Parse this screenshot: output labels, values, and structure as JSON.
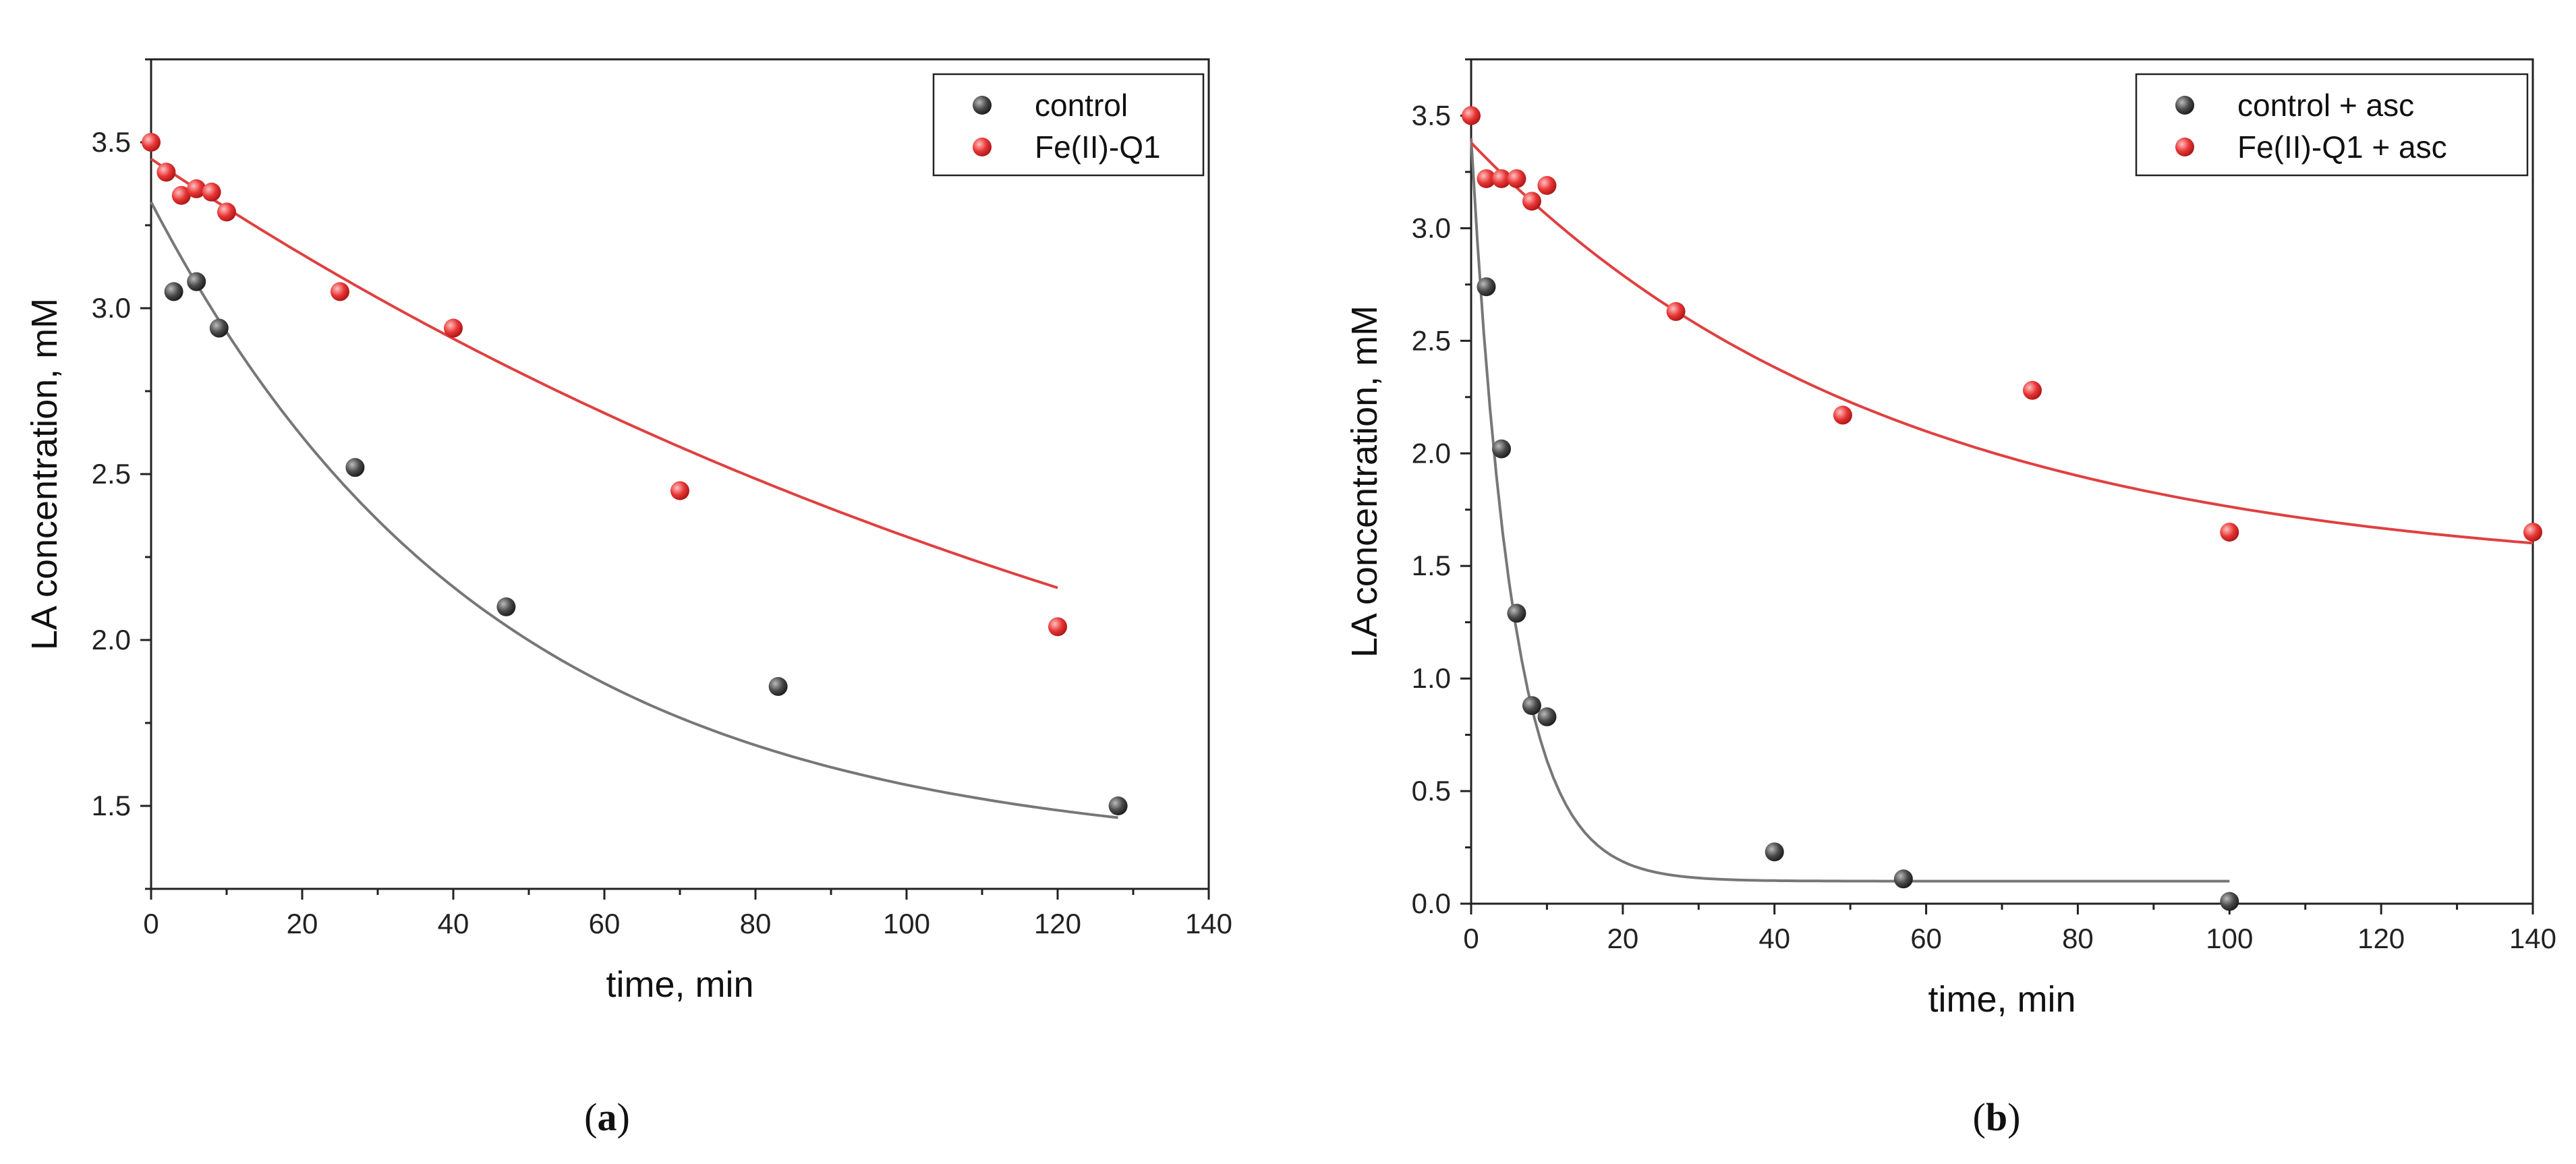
{
  "colors": {
    "control": "#555555",
    "control_fit": "#777777",
    "fe": "#e83535",
    "fe_fit": "#e04040",
    "axis": "#222222"
  },
  "chart_data": [
    {
      "type": "scatter",
      "panel": "a",
      "caption_open": "(",
      "caption_letter": "a",
      "caption_close": ")",
      "xlabel": "time, min",
      "ylabel": "LA concentration, mM",
      "xlim": [
        0,
        140
      ],
      "ylim": [
        1.25,
        3.75
      ],
      "xticks": [
        0,
        20,
        40,
        60,
        80,
        100,
        120,
        140
      ],
      "xtick_labels": [
        "0",
        "20",
        "40",
        "60",
        "80",
        "100",
        "120",
        "140"
      ],
      "yticks": [
        1.5,
        2.0,
        2.5,
        3.0,
        3.5
      ],
      "ytick_labels": [
        "1.5",
        "2.0",
        "2.5",
        "3.0",
        "3.5"
      ],
      "legend_position": "top-right",
      "series": [
        {
          "name": "control",
          "color_key": "control",
          "x": [
            3,
            6,
            9,
            27,
            47,
            83,
            128
          ],
          "y": [
            3.05,
            3.08,
            2.94,
            2.52,
            2.1,
            1.86,
            1.5
          ],
          "fit": {
            "model": "exp_decay",
            "y0": 1.35,
            "A": 1.97,
            "tau": 45,
            "x_start": 0,
            "x_end": 128
          }
        },
        {
          "name": "Fe(II)-Q1",
          "color_key": "fe",
          "x": [
            0,
            2,
            4,
            6,
            8,
            10,
            25,
            40,
            70,
            120
          ],
          "y": [
            3.5,
            3.41,
            3.34,
            3.36,
            3.35,
            3.29,
            3.05,
            2.94,
            2.45,
            2.04
          ],
          "fit": {
            "model": "exp_decay",
            "y0": 1.0,
            "A": 2.45,
            "tau": 160,
            "x_start": 0,
            "x_end": 120
          }
        }
      ]
    },
    {
      "type": "scatter",
      "panel": "b",
      "caption_open": "(",
      "caption_letter": "b",
      "caption_close": ")",
      "xlabel": "time, min",
      "ylabel": "LA concentration, mM",
      "xlim": [
        0,
        140
      ],
      "ylim": [
        0,
        3.75
      ],
      "xticks": [
        0,
        20,
        40,
        60,
        80,
        100,
        120,
        140
      ],
      "xtick_labels": [
        "0",
        "20",
        "40",
        "60",
        "80",
        "100",
        "120",
        "140"
      ],
      "yticks": [
        0.0,
        0.5,
        1.0,
        1.5,
        2.0,
        2.5,
        3.0,
        3.5
      ],
      "ytick_labels": [
        "0.0",
        "0.5",
        "1.0",
        "1.5",
        "2.0",
        "2.5",
        "3.0",
        "3.5"
      ],
      "legend_position": "top-right",
      "series": [
        {
          "name": "control + asc",
          "color_key": "control",
          "x": [
            2,
            4,
            6,
            8,
            10,
            40,
            57,
            100
          ],
          "y": [
            2.74,
            2.02,
            1.29,
            0.88,
            0.83,
            0.23,
            0.11,
            0.01
          ],
          "fit": {
            "model": "exp_decay",
            "y0": 0.1,
            "A": 3.3,
            "tau": 5.5,
            "x_start": 0,
            "x_end": 100
          }
        },
        {
          "name": "Fe(II)-Q1 + asc",
          "color_key": "fe",
          "x": [
            0,
            2,
            4,
            6,
            8,
            10,
            27,
            49,
            74,
            100,
            140
          ],
          "y": [
            3.5,
            3.22,
            3.22,
            3.22,
            3.12,
            3.19,
            2.63,
            2.17,
            2.28,
            1.65,
            1.65
          ],
          "fit": {
            "model": "exp_decay",
            "y0": 1.45,
            "A": 1.93,
            "tau": 55,
            "x_start": 0,
            "x_end": 140
          }
        }
      ]
    }
  ]
}
